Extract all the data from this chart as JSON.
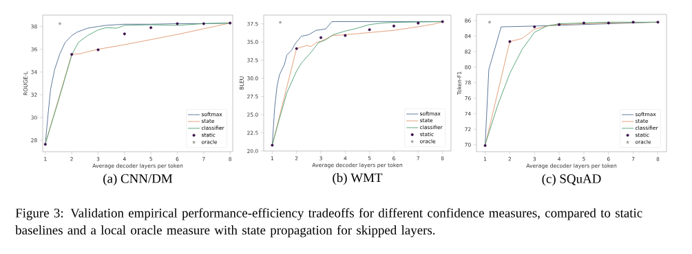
{
  "chart_data": [
    {
      "type": "line",
      "title": "(a) CNN/DM",
      "xlabel": "Average decoder layers per token",
      "ylabel": "ROUGE-L",
      "xlim": [
        0.9,
        8.1
      ],
      "ylim": [
        27,
        39
      ],
      "xticks": [
        1,
        2,
        3,
        4,
        5,
        6,
        7,
        8
      ],
      "yticks": [
        28,
        30,
        32,
        34,
        36,
        38
      ],
      "legend": "bottom right",
      "annotations": [
        "Figure 3: Validation empirical performance-efficiency tradeoffs for different confidence measures, compared to static baselines and a local oracle measure with state propagation for skipped layers."
      ],
      "series": [
        {
          "name": "softmax",
          "color": "#4c6a8f",
          "x": [
            1,
            1.1,
            1.2,
            1.35,
            1.55,
            1.75,
            2,
            2.2,
            2.6,
            3,
            3.3,
            4,
            5,
            6,
            7,
            8
          ],
          "values": [
            27.7,
            30.2,
            32.5,
            34.2,
            35.6,
            36.6,
            37.2,
            37.5,
            37.85,
            38.0,
            38.1,
            38.2,
            38.2,
            38.25,
            38.25,
            38.3
          ]
        },
        {
          "name": "state",
          "color": "#e0956b",
          "x": [
            1,
            2,
            2.3,
            3,
            4,
            5,
            6,
            7,
            8
          ],
          "values": [
            27.7,
            35.55,
            35.6,
            36.0,
            36.4,
            36.85,
            37.3,
            37.8,
            38.3
          ]
        },
        {
          "name": "classifier",
          "color": "#4a9e6e",
          "x": [
            1,
            1.5,
            2,
            2.25,
            2.6,
            3,
            3.3,
            3.7,
            4,
            5,
            6,
            7,
            8
          ],
          "values": [
            27.7,
            31.5,
            35.5,
            36.6,
            37.2,
            37.7,
            37.9,
            37.85,
            38.1,
            38.15,
            38.1,
            38.25,
            38.3
          ]
        },
        {
          "name": "static",
          "color": "#3b0f4a",
          "type": "scatter",
          "marker": "circle",
          "x": [
            1,
            2,
            3,
            4,
            5,
            6,
            7,
            8
          ],
          "values": [
            27.65,
            35.55,
            35.95,
            37.35,
            37.9,
            38.25,
            38.25,
            38.3
          ]
        },
        {
          "name": "oracle",
          "color": "#999999",
          "type": "scatter",
          "marker": "star",
          "x": [
            1.55
          ],
          "values": [
            38.25
          ]
        }
      ]
    },
    {
      "type": "line",
      "title": "(b) WMT",
      "xlabel": "Average decoder layers per token",
      "ylabel": "BLEU",
      "xlim": [
        0.65,
        8.35
      ],
      "ylim": [
        20,
        38.7
      ],
      "xticks": [
        1,
        2,
        3,
        4,
        5,
        6,
        7,
        8
      ],
      "yticks": [
        {
          "value": 20,
          "label": "20.0"
        },
        22.5,
        {
          "value": 25,
          "label": "25.0"
        },
        27.5,
        {
          "value": 30,
          "label": "30.0"
        },
        32.5,
        {
          "value": 35,
          "label": "35.0"
        },
        37.5
      ],
      "legend": "bottom right",
      "series": [
        {
          "name": "softmax",
          "color": "#4c6a8f",
          "x": [
            1,
            1.1,
            1.2,
            1.3,
            1.5,
            1.6,
            1.8,
            1.95,
            2.2,
            2.5,
            2.8,
            3,
            3.2,
            3.45,
            4,
            8
          ],
          "values": [
            20.8,
            26,
            29,
            30.5,
            31.9,
            33.2,
            33.9,
            34.8,
            35.8,
            36,
            36.6,
            36.7,
            36.8,
            37.8,
            37.8,
            37.8
          ]
        },
        {
          "name": "state",
          "color": "#e0956b",
          "x": [
            1,
            2,
            2.2,
            2.4,
            2.6,
            2.8,
            3,
            3.5,
            4,
            5,
            6,
            7,
            7.7,
            8
          ],
          "values": [
            20.8,
            34.1,
            34.3,
            34.5,
            34.4,
            34.9,
            35.1,
            35.9,
            36.0,
            36.3,
            36.6,
            37.1,
            37.5,
            37.8
          ]
        },
        {
          "name": "classifier",
          "color": "#4a9e6e",
          "x": [
            1,
            1.3,
            1.6,
            2,
            2.2,
            2.6,
            2.9,
            3.2,
            3.5,
            4,
            4.5,
            5,
            5.5,
            6,
            8
          ],
          "values": [
            20.8,
            24.5,
            28,
            31,
            32.1,
            33.6,
            34.9,
            35.3,
            36,
            36.5,
            36.9,
            37.4,
            37.6,
            37.7,
            37.8
          ]
        },
        {
          "name": "static",
          "color": "#3b0f4a",
          "type": "scatter",
          "marker": "circle",
          "x": [
            1,
            2,
            3,
            4,
            5,
            6,
            7,
            8
          ],
          "values": [
            20.8,
            34.1,
            35.6,
            35.9,
            36.7,
            37.2,
            37.6,
            37.8
          ]
        },
        {
          "name": "oracle",
          "color": "#999999",
          "type": "scatter",
          "marker": "star",
          "x": [
            1.33
          ],
          "values": [
            37.7
          ]
        }
      ]
    },
    {
      "type": "line",
      "title": "(c) SQuAD",
      "xlabel": "Average decoder layers per token",
      "ylabel": "Token-F1",
      "xlim": [
        0.65,
        8.35
      ],
      "ylim": [
        69.1,
        86.8
      ],
      "xticks": [
        1,
        2,
        3,
        4,
        5,
        6,
        7,
        8
      ],
      "yticks": [
        70,
        72,
        74,
        76,
        78,
        80,
        82,
        84,
        86
      ],
      "legend": "bottom right",
      "series": [
        {
          "name": "softmax",
          "color": "#4c6a8f",
          "x": [
            1,
            1.15,
            1.65,
            3,
            4,
            5,
            6,
            7,
            8
          ],
          "values": [
            69.9,
            79.7,
            85.2,
            85.3,
            85.4,
            85.5,
            85.6,
            85.7,
            85.8
          ]
        },
        {
          "name": "state",
          "color": "#e0956b",
          "x": [
            1,
            2,
            2.5,
            3,
            3.5,
            4,
            5,
            6,
            8
          ],
          "values": [
            69.9,
            83.3,
            83.7,
            84.9,
            85.3,
            85.5,
            85.6,
            85.7,
            85.8
          ]
        },
        {
          "name": "classifier",
          "color": "#4a9e6e",
          "x": [
            1,
            1.5,
            2,
            2.5,
            3,
            3.5,
            4,
            5,
            6,
            8
          ],
          "values": [
            70,
            75,
            79.2,
            82.3,
            84.5,
            85.3,
            85.6,
            85.7,
            85.8,
            85.8
          ]
        },
        {
          "name": "static",
          "color": "#3b0f4a",
          "type": "scatter",
          "marker": "circle",
          "x": [
            1,
            2,
            3,
            4,
            5,
            6,
            7,
            8
          ],
          "values": [
            69.9,
            83.3,
            85.2,
            85.5,
            85.7,
            85.7,
            85.8,
            85.8
          ]
        },
        {
          "name": "oracle",
          "color": "#999999",
          "type": "scatter",
          "marker": "star",
          "x": [
            1.18
          ],
          "values": [
            85.8
          ]
        }
      ]
    }
  ]
}
